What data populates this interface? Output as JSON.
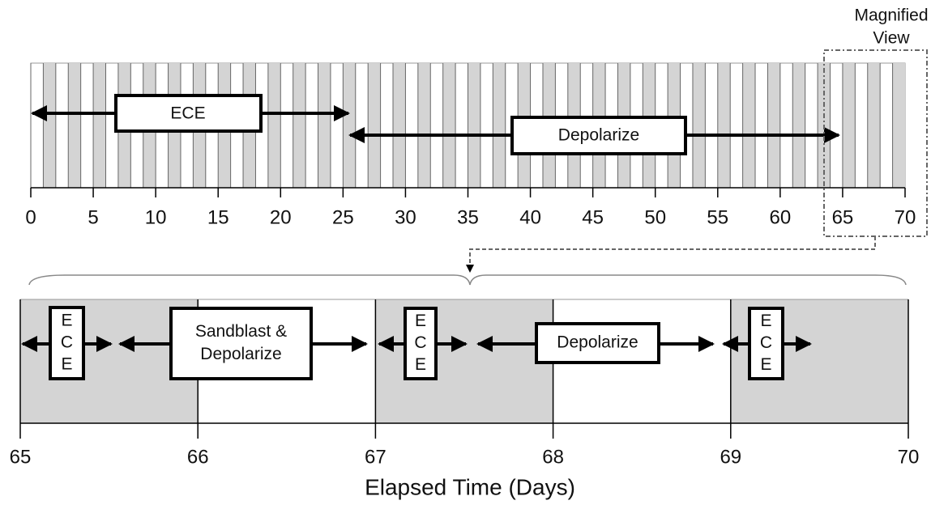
{
  "magnified_label": {
    "line1": "Magnified",
    "line2": "View"
  },
  "overview": {
    "ticks": [
      0,
      5,
      10,
      15,
      20,
      25,
      30,
      35,
      40,
      45,
      50,
      55,
      60,
      65,
      70
    ],
    "phases": [
      {
        "label": "ECE"
      },
      {
        "label": "Depolarize"
      }
    ]
  },
  "detail": {
    "ticks": [
      65,
      66,
      67,
      68,
      69,
      70
    ],
    "phases": [
      {
        "lines": [
          "E",
          "C",
          "E"
        ]
      },
      {
        "lines": [
          "Sandblast &",
          "Depolarize"
        ]
      },
      {
        "lines": [
          "E",
          "C",
          "E"
        ]
      },
      {
        "lines": [
          "Depolarize"
        ]
      },
      {
        "lines": [
          "E",
          "C",
          "E"
        ]
      }
    ]
  },
  "x_axis_label": "Elapsed Time (Days)"
}
